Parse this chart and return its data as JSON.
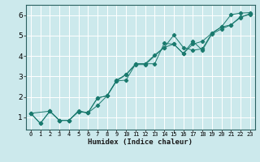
{
  "xlabel": "Humidex (Indice chaleur)",
  "bg_color": "#cce9ec",
  "grid_color": "#ffffff",
  "line_color": "#1a7a6e",
  "xlim": [
    -0.5,
    23.5
  ],
  "ylim": [
    0.4,
    6.5
  ],
  "xticks": [
    0,
    1,
    2,
    3,
    4,
    5,
    6,
    7,
    8,
    9,
    10,
    11,
    12,
    13,
    14,
    15,
    16,
    17,
    18,
    19,
    20,
    21,
    22,
    23
  ],
  "yticks": [
    1,
    2,
    3,
    4,
    5,
    6
  ],
  "line1_x": [
    0,
    1,
    2,
    3,
    4,
    5,
    6,
    7,
    8,
    9,
    10,
    11,
    12,
    13,
    14,
    15,
    16,
    17,
    18,
    19,
    20,
    21,
    22,
    23
  ],
  "line1_y": [
    1.2,
    0.7,
    1.3,
    0.85,
    0.85,
    1.28,
    1.22,
    1.95,
    2.05,
    2.82,
    3.1,
    3.62,
    3.62,
    4.05,
    4.42,
    5.02,
    4.42,
    4.28,
    4.35,
    5.12,
    5.42,
    6.02,
    6.1,
    6.12
  ],
  "line2_x": [
    0,
    1,
    2,
    3,
    4,
    5,
    6,
    7,
    8,
    9,
    10,
    11,
    12,
    13,
    14,
    15,
    16,
    17,
    18,
    19,
    20,
    21,
    22,
    23
  ],
  "line2_y": [
    1.2,
    0.7,
    1.3,
    0.85,
    0.85,
    1.28,
    1.22,
    1.58,
    2.05,
    2.78,
    2.82,
    3.62,
    3.62,
    3.62,
    4.62,
    4.58,
    4.12,
    4.58,
    4.72,
    5.12,
    5.42,
    5.52,
    5.92,
    6.02
  ],
  "line3_x": [
    0,
    2,
    3,
    4,
    5,
    6,
    7,
    8,
    9,
    10,
    11,
    12,
    14,
    15,
    16,
    17,
    18,
    19,
    20,
    21,
    22,
    23
  ],
  "line3_y": [
    1.2,
    1.3,
    0.85,
    0.85,
    1.32,
    1.22,
    1.95,
    2.05,
    2.78,
    3.08,
    3.58,
    3.58,
    4.42,
    4.58,
    4.12,
    4.72,
    4.28,
    5.08,
    5.32,
    5.52,
    5.88,
    6.08
  ]
}
